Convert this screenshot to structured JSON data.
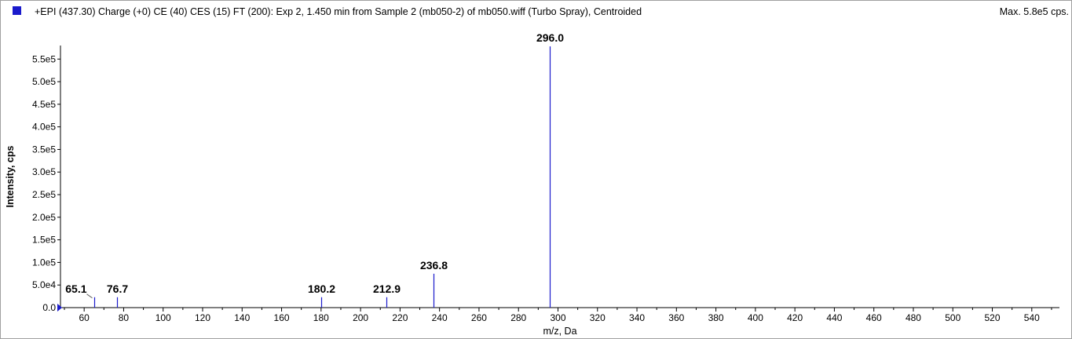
{
  "header": {
    "title": "+EPI (437.30) Charge (+0) CE (40) CES (15) FT (200): Exp 2, 1.450 min from Sample 2 (mb050-2) of mb050.wiff (Turbo Spray), Centroided",
    "max_label": "Max. 5.8e5 cps."
  },
  "colors": {
    "series": "#1a1acc",
    "axis": "#000000"
  },
  "chart_data": {
    "type": "bar",
    "title": "+EPI (437.30) Charge (+0) CE (40) CES (15) FT (200): Exp 2, 1.450 min from Sample 2 (mb050-2) of mb050.wiff (Turbo Spray), Centroided",
    "xlabel": "m/z, Da",
    "ylabel": "Intensity, cps",
    "xlim": [
      48,
      554
    ],
    "ylim": [
      0,
      580000
    ],
    "x_ticks": [
      60,
      80,
      100,
      120,
      140,
      160,
      180,
      200,
      220,
      240,
      260,
      280,
      300,
      320,
      340,
      360,
      380,
      400,
      420,
      440,
      460,
      480,
      500,
      520,
      540
    ],
    "x_tick_labels": [
      "60",
      "80",
      "100",
      "120",
      "140",
      "160",
      "180",
      "200",
      "220",
      "240",
      "260",
      "280",
      "300",
      "320",
      "340",
      "360",
      "380",
      "400",
      "420",
      "440",
      "460",
      "480",
      "500",
      "520",
      "540"
    ],
    "y_ticks": [
      0,
      50000,
      100000,
      150000,
      200000,
      250000,
      300000,
      350000,
      400000,
      450000,
      500000,
      550000
    ],
    "y_tick_labels": [
      "0.0",
      "5.0e4",
      "1.0e5",
      "1.5e5",
      "2.0e5",
      "2.5e5",
      "3.0e5",
      "3.5e5",
      "4.0e5",
      "4.5e5",
      "5.0e5",
      "5.5e5"
    ],
    "grid": false,
    "peaks": [
      {
        "mz": 65.1,
        "intensity": 23000,
        "label": "65.1"
      },
      {
        "mz": 76.7,
        "intensity": 23000,
        "label": "76.7"
      },
      {
        "mz": 180.2,
        "intensity": 23000,
        "label": "180.2"
      },
      {
        "mz": 212.9,
        "intensity": 23000,
        "label": "212.9"
      },
      {
        "mz": 236.8,
        "intensity": 75000,
        "label": "236.8"
      },
      {
        "mz": 296.0,
        "intensity": 578000,
        "label": "296.0"
      }
    ]
  }
}
